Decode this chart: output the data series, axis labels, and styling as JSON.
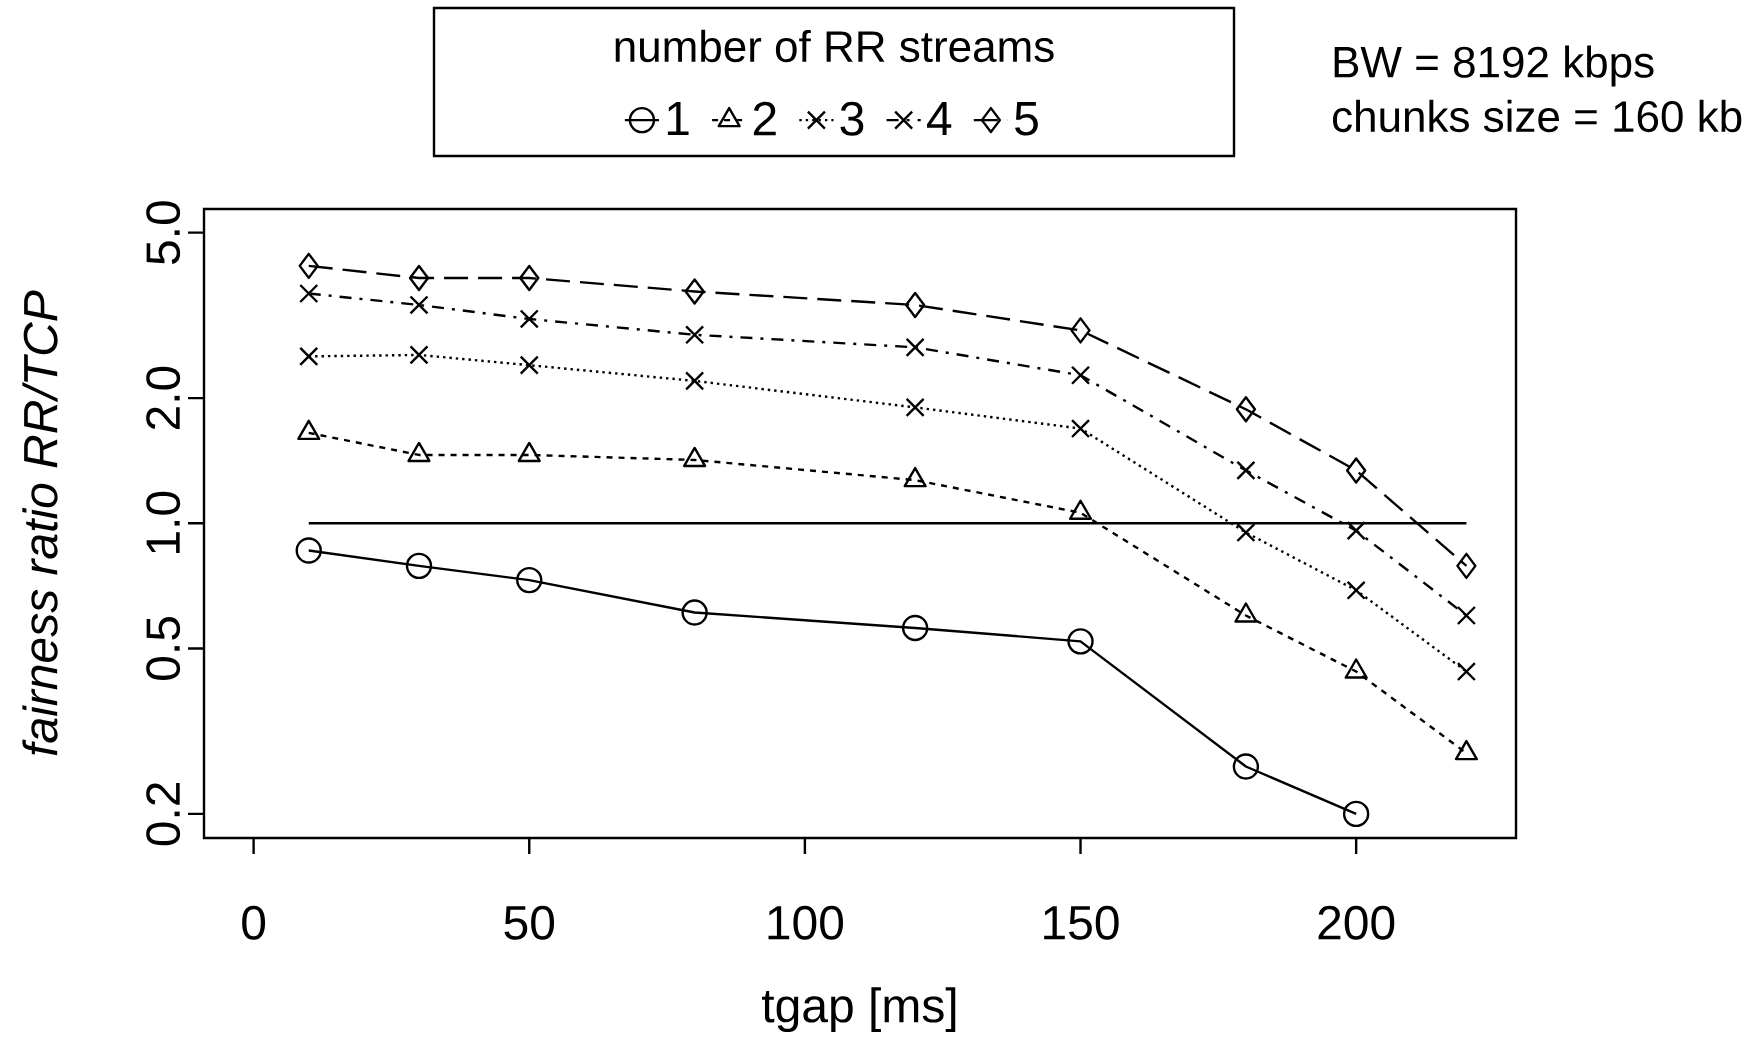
{
  "chart_data": {
    "type": "line",
    "xlabel": "tgap [ms]",
    "ylabel": "*fairness ratio RR/TCP*",
    "legend_title": "number of RR streams",
    "legend": "top",
    "log": "y",
    "grid": false,
    "x": [
      10,
      30,
      50,
      80,
      120,
      150,
      180,
      200,
      220
    ],
    "xlim": [
      -9,
      229
    ],
    "xticks": [
      0,
      50,
      100,
      150,
      200
    ],
    "ylim": [
      0.175,
      5.7
    ],
    "yticks": [
      0.2,
      0.5,
      {
        "value": 1,
        "label": "1.0"
      },
      {
        "value": 2,
        "label": "2.0"
      },
      {
        "value": 5,
        "label": "5.0"
      }
    ],
    "series": [
      {
        "name": "1",
        "color": "#000000",
        "marker": "circle",
        "line_style": "solid",
        "values": [
          0.86,
          0.79,
          0.73,
          0.61,
          0.56,
          0.52,
          0.26,
          0.2,
          null
        ]
      },
      {
        "name": "2",
        "color": "#000000",
        "marker": "triangle",
        "line_style": "dashed",
        "values": [
          1.65,
          1.46,
          1.46,
          1.42,
          1.27,
          1.06,
          0.6,
          0.44,
          0.28
        ]
      },
      {
        "name": "3",
        "color": "#000000",
        "marker": "cross",
        "line_style": "dotted",
        "values": [
          2.52,
          2.54,
          2.4,
          2.2,
          1.9,
          1.69,
          0.95,
          0.69,
          0.44
        ]
      },
      {
        "name": "4",
        "color": "#000000",
        "marker": "cross",
        "line_style": "dashdot",
        "values": [
          3.57,
          3.35,
          3.1,
          2.84,
          2.65,
          2.27,
          1.34,
          0.96,
          0.6
        ]
      },
      {
        "name": "5",
        "color": "#000000",
        "marker": "diamond",
        "line_style": "longdash",
        "values": [
          4.16,
          3.89,
          3.89,
          3.61,
          3.35,
          2.91,
          1.88,
          1.34,
          0.79
        ]
      }
    ],
    "ref_lines": [
      {
        "axis": "y",
        "value": 1,
        "color": "#000000"
      }
    ],
    "annotations": [
      "BW = 8192 kbps",
      "chunks size = 160 kb"
    ]
  }
}
